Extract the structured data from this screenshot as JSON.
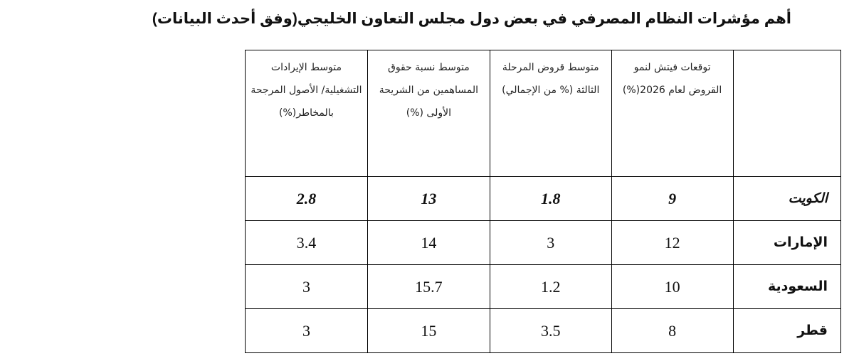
{
  "title": "أهم مؤشرات النظام المصرفي في بعض دول مجلس التعاون الخليجي(وفق أحدث البيانات)",
  "table": {
    "headers": [
      "",
      "توقعات فيتش لنمو القروض لعام 2026(%)",
      "متوسط قروض المرحلة الثالثة (% من الإجمالي)",
      "متوسط نسبة حقوق المساهمين من الشريحة الأولى (%)",
      "متوسط الإيرادات التشغيلية/ الأصول المرجحة بالمخاطر(%)"
    ],
    "rows": [
      {
        "country": "الكويت",
        "values": [
          "9",
          "1.8",
          "13",
          "2.8"
        ]
      },
      {
        "country": "الإمارات",
        "values": [
          "12",
          "3",
          "14",
          "3.4"
        ]
      },
      {
        "country": "السعودية",
        "values": [
          "10",
          "1.2",
          "15.7",
          "3"
        ]
      },
      {
        "country": "قطر",
        "values": [
          "8",
          "3.5",
          "15",
          "3"
        ]
      }
    ]
  }
}
